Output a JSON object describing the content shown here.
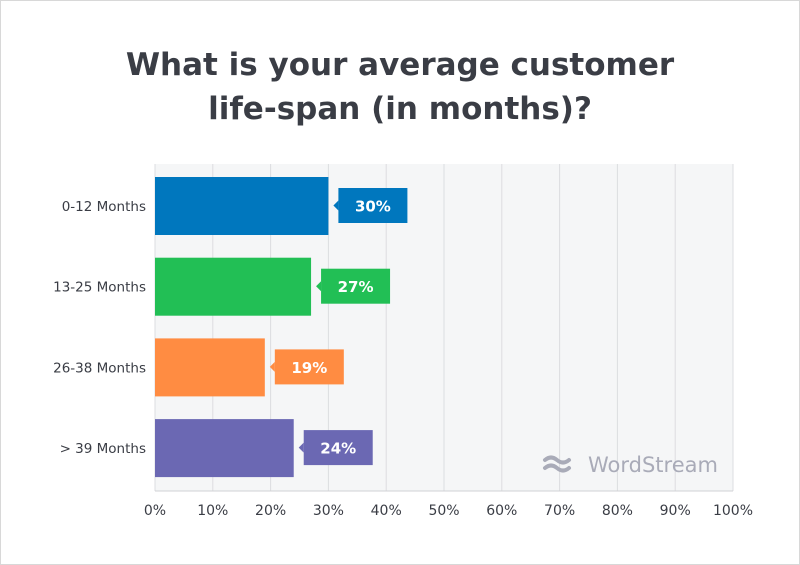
{
  "chart_data": {
    "type": "bar",
    "orientation": "horizontal",
    "title": "What is your average customer life-span (in months)?",
    "categories": [
      "0-12 Months",
      "13-25 Months",
      "26-38 Months",
      "> 39 Months"
    ],
    "values": [
      30,
      27,
      19,
      24
    ],
    "data_labels": [
      "30%",
      "27%",
      "19%",
      "24%"
    ],
    "colors": [
      "#0077be",
      "#22bf55",
      "#ff8c42",
      "#6b68b3"
    ],
    "xlim": [
      0,
      100
    ],
    "xticks": [
      "0%",
      "10%",
      "20%",
      "30%",
      "40%",
      "50%",
      "60%",
      "70%",
      "80%",
      "90%",
      "100%"
    ],
    "grid": true,
    "xlabel": "",
    "ylabel": ""
  },
  "watermark": "WordStream"
}
